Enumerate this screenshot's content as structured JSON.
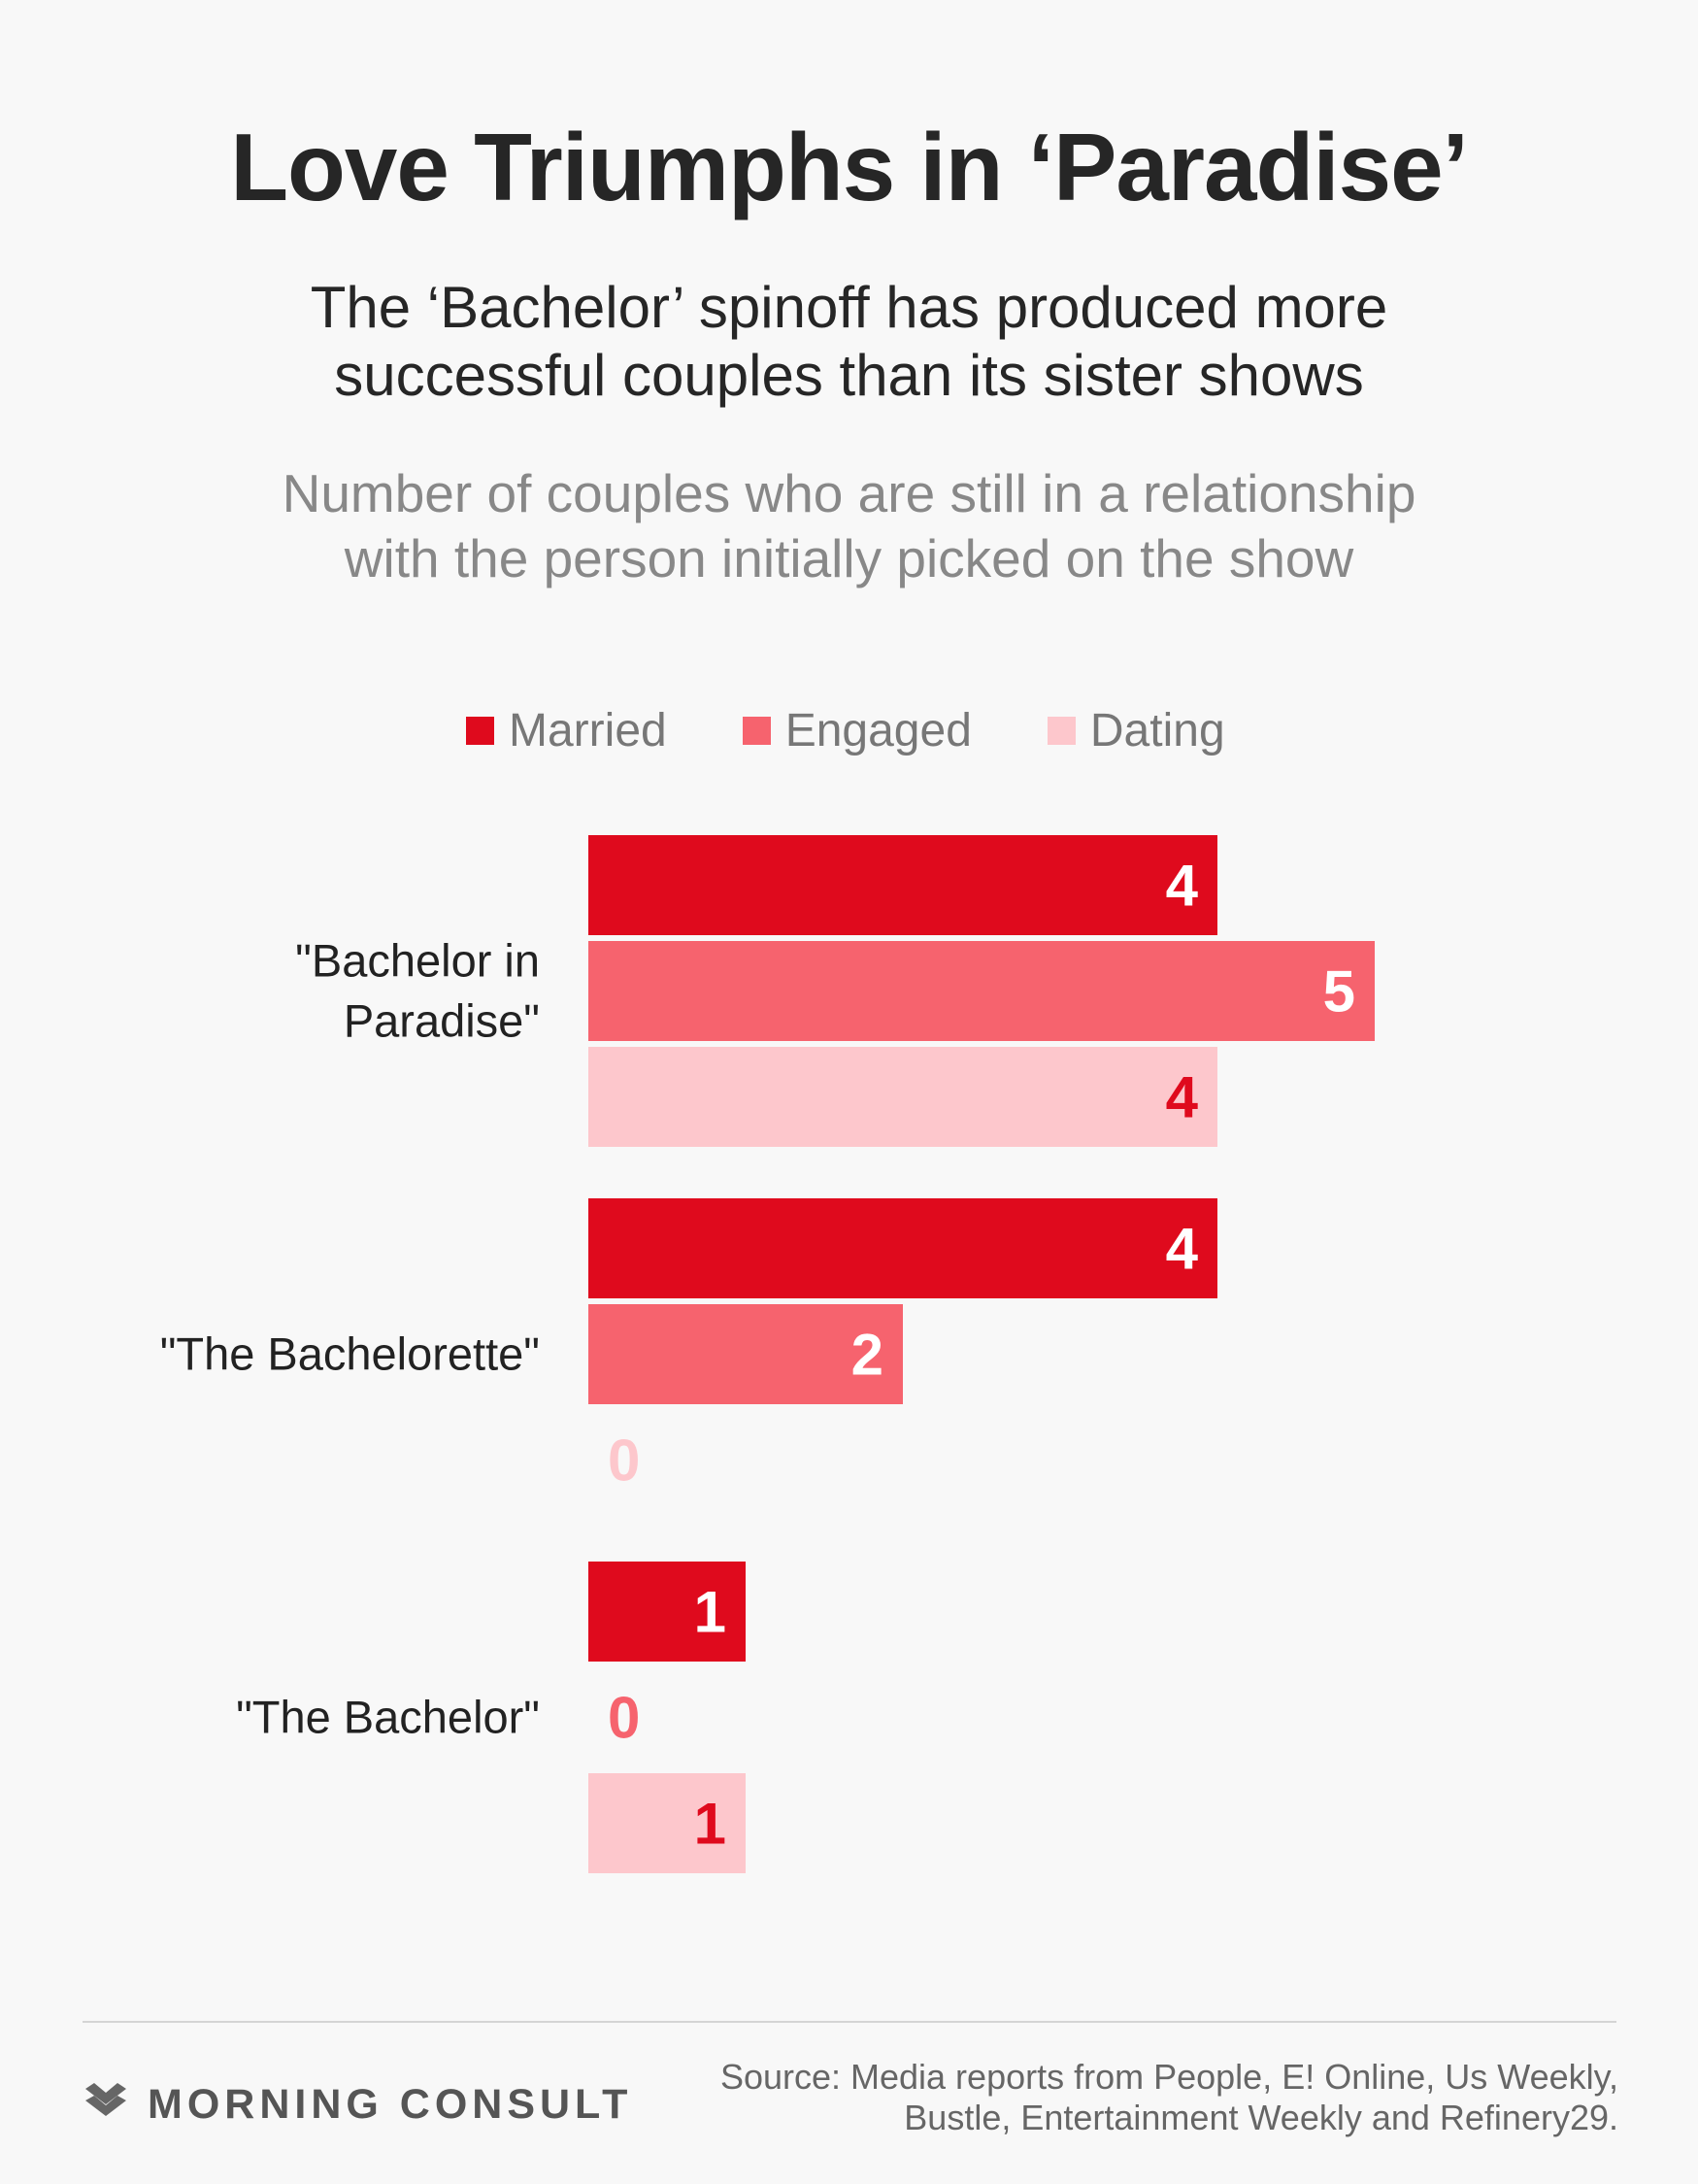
{
  "header": {
    "title": "Love Triumphs in ‘Paradise’",
    "subtitle_line1": "The ‘Bachelor’ spinoff has produced more",
    "subtitle_line2": "successful couples than its sister shows",
    "note_line1": "Number of couples who are still in a relationship",
    "note_line2": "with the person initially picked on the show"
  },
  "legend": [
    {
      "label": "Married",
      "color": "#df0a1d"
    },
    {
      "label": "Engaged",
      "color": "#f6636e"
    },
    {
      "label": "Dating",
      "color": "#fdc7cc"
    }
  ],
  "chart_data": {
    "type": "bar",
    "orientation": "horizontal",
    "categories": [
      [
        "\"Bachelor in",
        "Paradise\""
      ],
      [
        "\"The Bachelorette\""
      ],
      [
        "\"The Bachelor\""
      ]
    ],
    "series": [
      {
        "name": "Married",
        "values": [
          4,
          4,
          1
        ],
        "color": "#df0a1d",
        "label_color": "#ffffff"
      },
      {
        "name": "Engaged",
        "values": [
          5,
          2,
          0
        ],
        "color": "#f6636e",
        "label_color": "#ffffff"
      },
      {
        "name": "Dating",
        "values": [
          4,
          0,
          1
        ],
        "color": "#fdc7cc",
        "label_color": "#df0a1d"
      }
    ],
    "xlim": [
      0,
      5
    ],
    "legend_position": "top",
    "grid": false
  },
  "footer": {
    "brand": "MORNING CONSULT",
    "source_line1": "Source: Media reports from People, E! Online, Us Weekly,",
    "source_line2": "Bustle, Entertainment Weekly and Refinery29."
  }
}
